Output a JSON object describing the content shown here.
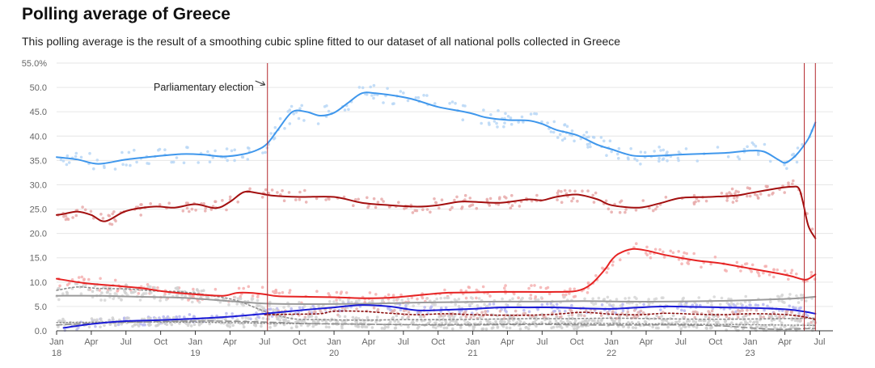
{
  "chart_data": {
    "type": "line",
    "title": "Polling average of Greece",
    "subtitle": "This polling average is the result of a smoothing cubic spline fitted to our dataset of all national polls collected in Greece",
    "y_ticks": [
      "55.0%",
      "50.0",
      "45.0",
      "40.0",
      "35.0",
      "30.0",
      "25.0",
      "20.0",
      "15.0",
      "10.0",
      "5.0",
      "0.0"
    ],
    "ylim": [
      0,
      55
    ],
    "xlim": [
      2018.0,
      2023.55
    ],
    "grid": true,
    "x_ticks": [
      {
        "x": 2018.0,
        "label": "Jan",
        "sub": "18"
      },
      {
        "x": 2018.25,
        "label": "Apr",
        "sub": ""
      },
      {
        "x": 2018.5,
        "label": "Jul",
        "sub": ""
      },
      {
        "x": 2018.75,
        "label": "Oct",
        "sub": ""
      },
      {
        "x": 2019.0,
        "label": "Jan",
        "sub": "19"
      },
      {
        "x": 2019.25,
        "label": "Apr",
        "sub": ""
      },
      {
        "x": 2019.5,
        "label": "Jul",
        "sub": ""
      },
      {
        "x": 2019.75,
        "label": "Oct",
        "sub": ""
      },
      {
        "x": 2020.0,
        "label": "Jan",
        "sub": "20"
      },
      {
        "x": 2020.25,
        "label": "Apr",
        "sub": ""
      },
      {
        "x": 2020.5,
        "label": "Jul",
        "sub": ""
      },
      {
        "x": 2020.75,
        "label": "Oct",
        "sub": ""
      },
      {
        "x": 2021.0,
        "label": "Jan",
        "sub": "21"
      },
      {
        "x": 2021.25,
        "label": "Apr",
        "sub": ""
      },
      {
        "x": 2021.5,
        "label": "Jul",
        "sub": ""
      },
      {
        "x": 2021.75,
        "label": "Oct",
        "sub": ""
      },
      {
        "x": 2022.0,
        "label": "Jan",
        "sub": "22"
      },
      {
        "x": 2022.25,
        "label": "Apr",
        "sub": ""
      },
      {
        "x": 2022.5,
        "label": "Jul",
        "sub": ""
      },
      {
        "x": 2022.75,
        "label": "Oct",
        "sub": ""
      },
      {
        "x": 2023.0,
        "label": "Jan",
        "sub": "23"
      },
      {
        "x": 2023.25,
        "label": "Apr",
        "sub": ""
      },
      {
        "x": 2023.5,
        "label": "Jul",
        "sub": ""
      }
    ],
    "annotations": [
      {
        "text": "Parliamentary election",
        "x": 2019.52
      },
      {
        "text": "",
        "x": 2023.39
      },
      {
        "text": "",
        "x": 2023.47
      }
    ],
    "series": [
      {
        "color": "#3f97ec",
        "dots": "#b9d7f6",
        "width": 2,
        "dash": "",
        "x": [
          2018.0,
          2018.15,
          2018.3,
          2018.5,
          2018.7,
          2018.9,
          2019.05,
          2019.2,
          2019.35,
          2019.45,
          2019.52,
          2019.6,
          2019.7,
          2019.8,
          2019.9,
          2020.0,
          2020.1,
          2020.2,
          2020.3,
          2020.5,
          2020.6,
          2020.75,
          2020.9,
          2021.0,
          2021.1,
          2021.25,
          2021.4,
          2021.5,
          2021.6,
          2021.75,
          2021.9,
          2022.0,
          2022.15,
          2022.3,
          2022.5,
          2022.7,
          2022.85,
          2023.0,
          2023.1,
          2023.2,
          2023.25,
          2023.3,
          2023.35,
          2023.42,
          2023.47
        ],
        "y": [
          35.7,
          35.2,
          34.3,
          35.2,
          35.8,
          36.3,
          36.2,
          35.8,
          36.3,
          37.2,
          38.5,
          41.5,
          45.0,
          45.0,
          44.2,
          44.8,
          46.8,
          48.8,
          48.8,
          48.0,
          47.3,
          46.0,
          45.2,
          44.6,
          43.8,
          43.3,
          43.2,
          42.5,
          41.3,
          40.2,
          38.2,
          37.3,
          36.0,
          35.9,
          36.2,
          36.4,
          36.6,
          37.0,
          36.8,
          35.2,
          34.5,
          35.3,
          36.7,
          39.5,
          42.8
        ]
      },
      {
        "color": "#a30f0f",
        "dots": "#e8aaaa",
        "width": 2,
        "dash": "",
        "x": [
          2018.0,
          2018.05,
          2018.15,
          2018.25,
          2018.35,
          2018.5,
          2018.7,
          2018.85,
          2019.0,
          2019.15,
          2019.25,
          2019.35,
          2019.45,
          2019.55,
          2019.75,
          2020.0,
          2020.2,
          2020.4,
          2020.6,
          2020.75,
          2020.9,
          2021.0,
          2021.2,
          2021.4,
          2021.5,
          2021.6,
          2021.75,
          2021.9,
          2022.0,
          2022.2,
          2022.35,
          2022.5,
          2022.7,
          2022.9,
          2023.0,
          2023.2,
          2023.3,
          2023.35,
          2023.38,
          2023.42,
          2023.47
        ],
        "y": [
          23.8,
          24.0,
          24.5,
          23.8,
          22.5,
          24.6,
          25.5,
          25.3,
          26.0,
          25.2,
          26.5,
          28.5,
          28.3,
          27.8,
          27.5,
          27.5,
          26.3,
          25.8,
          25.5,
          25.8,
          26.5,
          26.5,
          26.3,
          27.0,
          26.8,
          27.5,
          28.0,
          27.0,
          25.8,
          25.3,
          26.2,
          27.3,
          27.5,
          27.8,
          28.3,
          29.3,
          29.6,
          29.3,
          26.5,
          21.5,
          19.0
        ]
      },
      {
        "color": "#e62222",
        "dots": "#f4b0b0",
        "width": 2,
        "dash": "",
        "x": [
          2018.0,
          2018.2,
          2018.4,
          2018.6,
          2018.8,
          2019.0,
          2019.2,
          2019.3,
          2019.4,
          2019.5,
          2019.6,
          2019.8,
          2020.0,
          2020.2,
          2020.4,
          2020.6,
          2020.8,
          2021.0,
          2021.2,
          2021.4,
          2021.6,
          2021.75,
          2021.85,
          2021.95,
          2022.0,
          2022.05,
          2022.15,
          2022.25,
          2022.4,
          2022.6,
          2022.8,
          2023.0,
          2023.2,
          2023.3,
          2023.4,
          2023.47
        ],
        "y": [
          10.7,
          9.8,
          9.3,
          8.8,
          8.0,
          7.5,
          7.2,
          7.8,
          7.8,
          7.5,
          7.1,
          7.0,
          6.9,
          6.7,
          6.8,
          7.3,
          7.8,
          7.9,
          8.0,
          8.0,
          8.0,
          8.2,
          9.5,
          12.5,
          14.5,
          15.8,
          16.8,
          16.5,
          15.5,
          14.5,
          13.8,
          12.8,
          11.8,
          11.2,
          10.5,
          11.6
        ]
      },
      {
        "color": "#1a1ad6",
        "dots": "#b7b7ee",
        "width": 2,
        "dash": "",
        "x": [
          2018.05,
          2018.25,
          2018.5,
          2018.75,
          2019.0,
          2019.25,
          2019.5,
          2019.75,
          2020.0,
          2020.2,
          2020.4,
          2020.6,
          2020.8,
          2021.0,
          2021.2,
          2021.4,
          2021.6,
          2021.8,
          2022.0,
          2022.2,
          2022.4,
          2022.6,
          2022.8,
          2023.0,
          2023.2,
          2023.3,
          2023.4,
          2023.47
        ],
        "y": [
          0.6,
          1.4,
          2.0,
          2.2,
          2.5,
          2.9,
          3.5,
          4.2,
          4.8,
          5.3,
          5.0,
          4.2,
          4.3,
          4.5,
          4.8,
          4.8,
          4.8,
          4.6,
          4.5,
          4.8,
          5.0,
          4.9,
          4.8,
          4.7,
          4.5,
          4.3,
          3.9,
          3.5
        ]
      },
      {
        "color": "#9b9b9b",
        "dots": "#d6d6d6",
        "width": 2,
        "dash": "",
        "x": [
          2018.0,
          2018.3,
          2018.6,
          2018.9,
          2019.2,
          2019.5,
          2019.7,
          2020.0,
          2020.3,
          2020.6,
          2020.9,
          2021.2,
          2021.5,
          2021.8,
          2022.1,
          2022.4,
          2022.7,
          2023.0,
          2023.2,
          2023.35,
          2023.47
        ],
        "y": [
          7.2,
          7.2,
          7.0,
          6.8,
          6.2,
          5.6,
          5.5,
          5.5,
          5.6,
          5.8,
          5.9,
          6.0,
          6.0,
          6.1,
          6.0,
          6.0,
          6.1,
          6.3,
          6.5,
          6.7,
          7.0
        ]
      },
      {
        "color": "#8b1010",
        "dots": "#e0b0b0",
        "width": 1.6,
        "dash": "2,3",
        "x": [
          2019.5,
          2019.7,
          2019.9,
          2020.0,
          2020.2,
          2020.4,
          2020.6,
          2020.8,
          2021.0,
          2021.2,
          2021.4,
          2021.6,
          2021.8,
          2022.0,
          2022.2,
          2022.4,
          2022.6,
          2022.8,
          2023.0,
          2023.2,
          2023.3,
          2023.4,
          2023.47
        ],
        "y": [
          3.3,
          3.4,
          3.5,
          4.0,
          4.0,
          3.6,
          3.3,
          3.5,
          3.3,
          3.2,
          3.2,
          3.4,
          3.8,
          3.4,
          3.3,
          3.6,
          3.4,
          3.3,
          3.5,
          3.4,
          3.2,
          2.8,
          2.3
        ]
      },
      {
        "color": "#8e8e8e",
        "dots": "#d0d0d0",
        "width": 1.6,
        "dash": "2,3",
        "x": [
          2018.0,
          2018.15,
          2018.3,
          2018.5,
          2018.7,
          2018.9,
          2019.1,
          2019.3,
          2019.5,
          2019.7,
          2019.9,
          2020.2,
          2020.5,
          2020.8,
          2021.1,
          2021.4,
          2021.7,
          2022.0,
          2022.3,
          2022.6,
          2022.9,
          2023.2,
          2023.47
        ],
        "y": [
          8.3,
          9.0,
          8.7,
          8.6,
          8.2,
          8.0,
          7.3,
          6.2,
          4.0,
          2.5,
          2.3,
          2.2,
          2.3,
          2.3,
          2.4,
          2.5,
          2.5,
          2.6,
          2.5,
          2.4,
          2.4,
          2.5,
          2.6
        ]
      },
      {
        "color": "#8e8e8e",
        "dots": "#d0d0d0",
        "width": 1.6,
        "dash": "7,4",
        "x": [
          2018.0,
          2018.3,
          2018.6,
          2018.9,
          2019.2,
          2019.5,
          2019.8,
          2020.1,
          2020.4,
          2020.7,
          2021.0,
          2021.3,
          2021.6,
          2021.9,
          2022.2,
          2022.5,
          2022.8,
          2023.0,
          2023.2,
          2023.47
        ],
        "y": [
          1.2,
          1.6,
          1.8,
          2.0,
          2.0,
          1.8,
          1.5,
          1.4,
          1.3,
          1.2,
          1.2,
          1.3,
          1.3,
          1.2,
          1.2,
          1.2,
          1.0,
          0.6,
          0.3,
          0.5
        ]
      },
      {
        "color": "#8e8e8e",
        "dots": "#d0d0d0",
        "width": 1.4,
        "dash": "1.5,2.5",
        "x": [
          2018.0,
          2018.4,
          2018.8,
          2019.2,
          2019.6,
          2020.0,
          2020.4,
          2020.8,
          2021.2,
          2021.6,
          2022.0,
          2022.4,
          2022.8,
          2023.2,
          2023.47
        ],
        "y": [
          1.7,
          1.8,
          1.8,
          1.7,
          1.5,
          1.4,
          1.3,
          1.3,
          1.4,
          1.5,
          1.5,
          1.4,
          1.3,
          1.2,
          1.1
        ]
      }
    ]
  }
}
